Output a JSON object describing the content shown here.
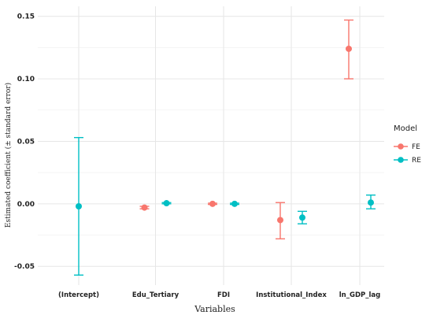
{
  "chart_data": {
    "type": "scatter",
    "subtype": "point-range",
    "xlabel": "Variables",
    "ylabel": "Estimated coefficient (± standard error)",
    "categories": [
      "(Intercept)",
      "Edu_Tertiary",
      "FDI",
      "Institutional_Index",
      "ln_GDP_lag"
    ],
    "ylim": [
      -0.065,
      0.158
    ],
    "yticks": [
      -0.05,
      0.0,
      0.05,
      0.1,
      0.15
    ],
    "ytick_labels": [
      "-0.05",
      "0.00",
      "0.05",
      "0.10",
      "0.15"
    ],
    "grid": true,
    "legend": {
      "title": "Model",
      "position": "right"
    },
    "series": [
      {
        "name": "FE",
        "color": "#F8766D",
        "points": [
          {
            "category": "Edu_Tertiary",
            "estimate": -0.003,
            "lower": -0.004,
            "upper": -0.002
          },
          {
            "category": "FDI",
            "estimate": 0.0,
            "lower": -0.0005,
            "upper": 0.0005
          },
          {
            "category": "Institutional_Index",
            "estimate": -0.013,
            "lower": -0.028,
            "upper": 0.001
          },
          {
            "category": "ln_GDP_lag",
            "estimate": 0.124,
            "lower": 0.1,
            "upper": 0.147
          }
        ]
      },
      {
        "name": "RE",
        "color": "#00BFC4",
        "points": [
          {
            "category": "(Intercept)",
            "estimate": -0.002,
            "lower": -0.057,
            "upper": 0.053
          },
          {
            "category": "Edu_Tertiary",
            "estimate": 0.0005,
            "lower": 0.0,
            "upper": 0.001
          },
          {
            "category": "FDI",
            "estimate": 0.0,
            "lower": -0.0005,
            "upper": 0.0005
          },
          {
            "category": "Institutional_Index",
            "estimate": -0.011,
            "lower": -0.016,
            "upper": -0.006
          },
          {
            "category": "ln_GDP_lag",
            "estimate": 0.001,
            "lower": -0.004,
            "upper": 0.007
          }
        ]
      }
    ]
  }
}
